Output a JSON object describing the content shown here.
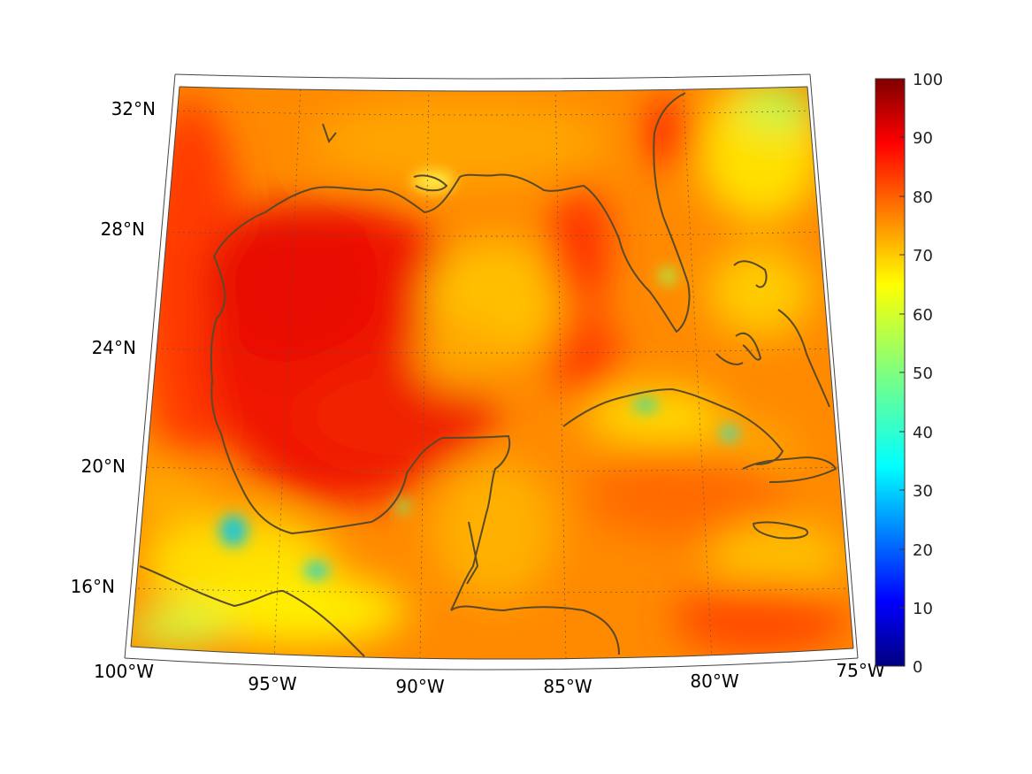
{
  "map": {
    "lat_labels": [
      "32°N",
      "28°N",
      "24°N",
      "20°N",
      "16°N"
    ],
    "lon_labels": [
      "100°W",
      "95°W",
      "90°W",
      "85°W",
      "80°W",
      "75°W"
    ]
  },
  "colorbar": {
    "ticks": [
      "100",
      "90",
      "80",
      "70",
      "60",
      "50",
      "40",
      "30",
      "20",
      "10",
      "0"
    ],
    "min": 0,
    "max": 100,
    "colormap": "jet"
  },
  "colors": {
    "coastline": "#5a4a2a",
    "jet_stops": [
      "#00007f",
      "#0000ff",
      "#007fff",
      "#00ffff",
      "#7fff7f",
      "#ffff00",
      "#ff7f00",
      "#ff0000",
      "#7f0000"
    ]
  }
}
